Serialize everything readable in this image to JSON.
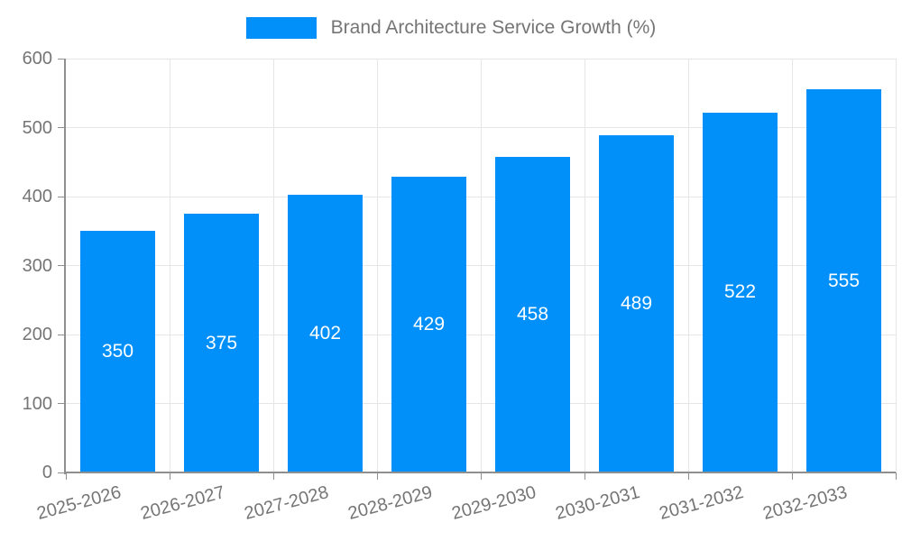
{
  "legend": {
    "label": "Brand Architecture Service Growth (%)"
  },
  "colors": {
    "bar": "#0190FA",
    "axis": "#8f8f8f",
    "grid": "#e6e6e6",
    "tick_text": "#757575",
    "value_text": "#ffffff"
  },
  "chart_data": {
    "type": "bar",
    "title": "",
    "legend": "Brand Architecture Service Growth (%)",
    "legend_position": "top",
    "categories": [
      "2025-2026",
      "2026-2027",
      "2027-2028",
      "2028-2029",
      "2029-2030",
      "2030-2031",
      "2031-2032",
      "2032-2033"
    ],
    "values": [
      350,
      375,
      402,
      429,
      458,
      489,
      522,
      555
    ],
    "xlabel": "",
    "ylabel": "",
    "ylim": [
      0,
      600
    ],
    "yticks": [
      0,
      100,
      200,
      300,
      400,
      500,
      600
    ],
    "grid": true,
    "bar_labels_inside": true,
    "x_label_rotation_deg": -15
  }
}
